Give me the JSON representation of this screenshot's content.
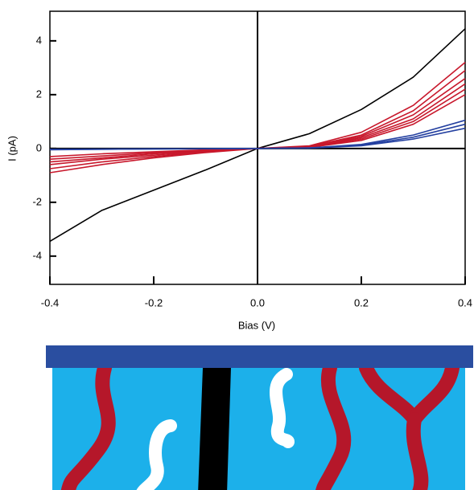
{
  "chart_data": {
    "type": "line",
    "x_label": "Bias (V)",
    "y_label": "I (pA)",
    "x": [
      -0.4,
      -0.3,
      -0.2,
      -0.1,
      0,
      0.1,
      0.2,
      0.3,
      0.4
    ],
    "xlim": [
      -0.4,
      0.4
    ],
    "xticks": [
      -0.4,
      -0.2,
      {
        "value": 0,
        "label": "0.0"
      },
      0.2,
      0.4
    ],
    "ylim": [
      -5.05,
      5.1
    ],
    "yticks": [
      -4,
      -2,
      0,
      2,
      4
    ],
    "series": [
      {
        "color": "#000000",
        "values": [
          -3.45,
          -2.3,
          -1.55,
          -0.8,
          0,
          0.55,
          1.45,
          2.65,
          4.45
        ]
      },
      {
        "color": "#c8182c",
        "values": [
          -0.9,
          -0.6,
          -0.35,
          -0.15,
          0,
          0.1,
          0.6,
          1.6,
          3.2
        ]
      },
      {
        "color": "#c8182c",
        "values": [
          -0.75,
          -0.5,
          -0.3,
          -0.12,
          0,
          0.08,
          0.5,
          1.4,
          2.9
        ]
      },
      {
        "color": "#c8182c",
        "values": [
          -0.6,
          -0.4,
          -0.25,
          -0.1,
          0,
          0.07,
          0.45,
          1.25,
          2.6
        ]
      },
      {
        "color": "#c8182c",
        "values": [
          -0.5,
          -0.35,
          -0.2,
          -0.08,
          0,
          0.06,
          0.4,
          1.1,
          2.4
        ]
      },
      {
        "color": "#c8182c",
        "values": [
          -0.4,
          -0.28,
          -0.16,
          -0.06,
          0,
          0.05,
          0.35,
          1.0,
          2.2
        ]
      },
      {
        "color": "#c8182c",
        "values": [
          -0.3,
          -0.2,
          -0.12,
          -0.05,
          0,
          0.04,
          0.3,
          0.9,
          2.0
        ]
      },
      {
        "color": "#2440a0",
        "values": [
          -0.05,
          -0.03,
          -0.02,
          -0.01,
          0,
          0.02,
          0.15,
          0.5,
          1.05
        ]
      },
      {
        "color": "#2440a0",
        "values": [
          -0.04,
          -0.03,
          -0.02,
          -0.01,
          0,
          0.02,
          0.12,
          0.42,
          0.9
        ]
      },
      {
        "color": "#2440a0",
        "values": [
          -0.03,
          -0.02,
          -0.01,
          -0.01,
          0,
          0.01,
          0.1,
          0.35,
          0.75
        ]
      }
    ]
  }
}
